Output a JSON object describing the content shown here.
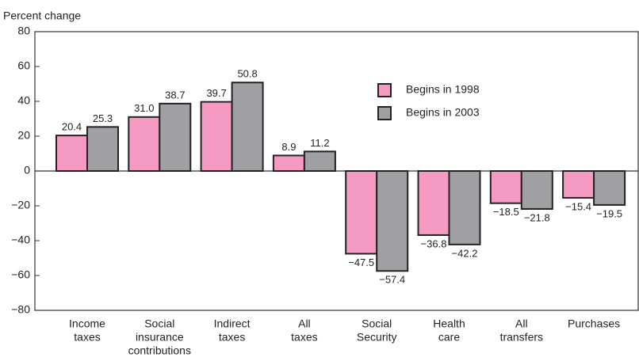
{
  "chart_data": {
    "type": "bar",
    "y_axis_label": "Percent change",
    "categories": [
      [
        "Income",
        "taxes"
      ],
      [
        "Social",
        "insurance",
        "contributions"
      ],
      [
        "Indirect",
        "taxes"
      ],
      [
        "All",
        "taxes"
      ],
      [
        "Social",
        "Security"
      ],
      [
        "Health",
        "care"
      ],
      [
        "All",
        "transfers"
      ],
      [
        "Purchases"
      ]
    ],
    "series": [
      {
        "name": "Begins in 1998",
        "color": "#f59ac3",
        "values": [
          20.4,
          31.0,
          39.7,
          8.9,
          -47.5,
          -36.8,
          -18.5,
          -15.4
        ],
        "value_labels": [
          "20.4",
          "31.0",
          "39.7",
          "8.9",
          "−47.5",
          "−36.8",
          "−18.5",
          "−15.4"
        ]
      },
      {
        "name": "Begins in 2003",
        "color": "#a0a0a4",
        "values": [
          25.3,
          38.7,
          50.8,
          11.2,
          -57.4,
          -42.2,
          -21.8,
          -19.5
        ],
        "value_labels": [
          "25.3",
          "38.7",
          "50.8",
          "11.2",
          "−57.4",
          "−42.2",
          "−21.8",
          "−19.5"
        ]
      }
    ],
    "ylim": [
      -80,
      80
    ],
    "yticks": [
      {
        "value": -80,
        "label": "−80"
      },
      {
        "value": -60,
        "label": "−60"
      },
      {
        "value": -40,
        "label": "−40"
      },
      {
        "value": -20,
        "label": "−20"
      },
      0,
      20,
      40,
      60,
      80
    ],
    "grid": false
  }
}
